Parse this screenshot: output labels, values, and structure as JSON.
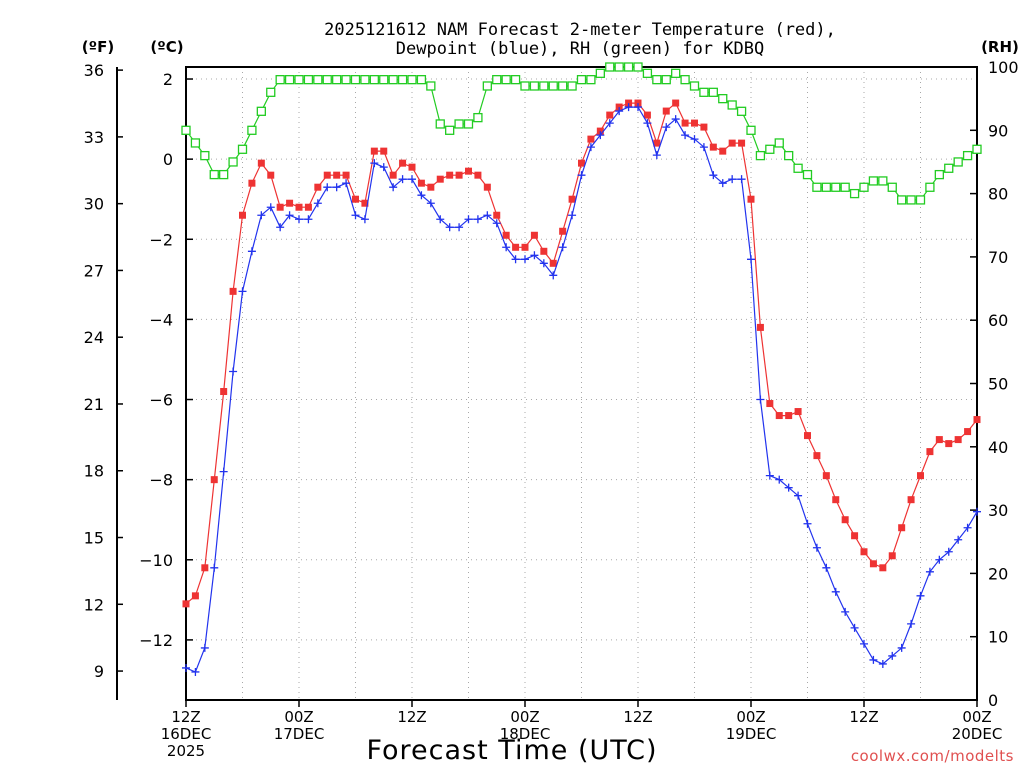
{
  "chart_data": {
    "type": "line",
    "title_line1": "2025121612 NAM Forecast 2-meter Temperature (red),",
    "title_line2": "Dewpoint (blue), RH (green) for KDBQ",
    "xlabel": "Forecast Time (UTC)",
    "watermark": "coolwx.com/modelts",
    "units": {
      "f": "(ºF)",
      "c": "(ºC)",
      "rh": "(RH)"
    },
    "x_range_hours": [
      0,
      84
    ],
    "x_ticks": [
      {
        "hour": 0,
        "line1": "12Z",
        "line2": "16DEC",
        "line3": "2025"
      },
      {
        "hour": 12,
        "line1": "00Z",
        "line2": "17DEC",
        "line3": ""
      },
      {
        "hour": 24,
        "line1": "12Z",
        "line2": "",
        "line3": ""
      },
      {
        "hour": 36,
        "line1": "00Z",
        "line2": "18DEC",
        "line3": ""
      },
      {
        "hour": 48,
        "line1": "12Z",
        "line2": "",
        "line3": ""
      },
      {
        "hour": 60,
        "line1": "00Z",
        "line2": "19DEC",
        "line3": ""
      },
      {
        "hour": 72,
        "line1": "12Z",
        "line2": "",
        "line3": ""
      },
      {
        "hour": 84,
        "line1": "00Z",
        "line2": "20DEC",
        "line3": ""
      }
    ],
    "y_celsius_range": [
      -13.5,
      2.3
    ],
    "y_celsius_ticks": [
      "2",
      "0",
      "−2",
      "−4",
      "−6",
      "−8",
      "−10",
      "−12"
    ],
    "y_fahrenheit_ticks": [
      "36",
      "33",
      "30",
      "27",
      "24",
      "21",
      "18",
      "15",
      "12",
      "9"
    ],
    "y_rh_range": [
      0,
      100
    ],
    "y_rh_ticks": [
      "100",
      "90",
      "80",
      "70",
      "60",
      "50",
      "40",
      "30",
      "20",
      "10",
      "0"
    ],
    "grid": true,
    "series": [
      {
        "name": "Temperature",
        "color": "#ee3333",
        "marker": "filled-square",
        "axis": "celsius",
        "x": [
          0,
          1,
          2,
          3,
          4,
          5,
          6,
          7,
          8,
          9,
          10,
          11,
          12,
          13,
          14,
          15,
          16,
          17,
          18,
          19,
          20,
          21,
          22,
          23,
          24,
          25,
          26,
          27,
          28,
          29,
          30,
          31,
          32,
          33,
          34,
          35,
          36,
          37,
          38,
          39,
          40,
          41,
          42,
          43,
          44,
          45,
          46,
          47,
          48,
          49,
          50,
          51,
          52,
          53,
          54,
          55,
          56,
          57,
          58,
          59,
          60,
          61,
          62,
          63,
          64,
          65,
          66,
          67,
          68,
          69,
          70,
          71,
          72,
          73,
          74,
          75,
          76,
          77,
          78,
          79,
          80,
          81,
          82,
          83,
          84
        ],
        "values": [
          -11.1,
          -10.9,
          -10.2,
          -8.0,
          -5.8,
          -3.3,
          -1.4,
          -0.6,
          -0.1,
          -0.4,
          -1.2,
          -1.1,
          -1.2,
          -1.2,
          -0.7,
          -0.4,
          -0.4,
          -0.4,
          -1.0,
          -1.1,
          0.2,
          0.2,
          -0.4,
          -0.1,
          -0.2,
          -0.6,
          -0.7,
          -0.5,
          -0.4,
          -0.4,
          -0.3,
          -0.4,
          -0.7,
          -1.4,
          -1.9,
          -2.2,
          -2.2,
          -1.9,
          -2.3,
          -2.6,
          -1.8,
          -1.0,
          -0.1,
          0.5,
          0.7,
          1.1,
          1.3,
          1.4,
          1.4,
          1.1,
          0.4,
          1.2,
          1.4,
          0.9,
          0.9,
          0.8,
          0.3,
          0.2,
          0.4,
          0.4,
          -1.0,
          -4.2,
          -6.1,
          -6.4,
          -6.4,
          -6.3,
          -6.9,
          -7.4,
          -7.9,
          -8.5,
          -9.0,
          -9.4,
          -9.8,
          -10.1,
          -10.2,
          -9.9,
          -9.2,
          -8.5,
          -7.9,
          -7.3,
          -7.0,
          -7.1,
          -7.0,
          -6.8,
          -6.5
        ]
      },
      {
        "name": "Dewpoint",
        "color": "#2233ee",
        "marker": "plus",
        "axis": "celsius",
        "x": [
          0,
          1,
          2,
          3,
          4,
          5,
          6,
          7,
          8,
          9,
          10,
          11,
          12,
          13,
          14,
          15,
          16,
          17,
          18,
          19,
          20,
          21,
          22,
          23,
          24,
          25,
          26,
          27,
          28,
          29,
          30,
          31,
          32,
          33,
          34,
          35,
          36,
          37,
          38,
          39,
          40,
          41,
          42,
          43,
          44,
          45,
          46,
          47,
          48,
          49,
          50,
          51,
          52,
          53,
          54,
          55,
          56,
          57,
          58,
          59,
          60,
          61,
          62,
          63,
          64,
          65,
          66,
          67,
          68,
          69,
          70,
          71,
          72,
          73,
          74,
          75,
          76,
          77,
          78,
          79,
          80,
          81,
          82,
          83,
          84
        ],
        "values": [
          -12.7,
          -12.8,
          -12.2,
          -10.2,
          -7.8,
          -5.3,
          -3.3,
          -2.3,
          -1.4,
          -1.2,
          -1.7,
          -1.4,
          -1.5,
          -1.5,
          -1.1,
          -0.7,
          -0.7,
          -0.6,
          -1.4,
          -1.5,
          -0.1,
          -0.2,
          -0.7,
          -0.5,
          -0.5,
          -0.9,
          -1.1,
          -1.5,
          -1.7,
          -1.7,
          -1.5,
          -1.5,
          -1.4,
          -1.6,
          -2.2,
          -2.5,
          -2.5,
          -2.4,
          -2.6,
          -2.9,
          -2.2,
          -1.4,
          -0.4,
          0.3,
          0.6,
          0.9,
          1.2,
          1.3,
          1.3,
          0.9,
          0.1,
          0.8,
          1.0,
          0.6,
          0.5,
          0.3,
          -0.4,
          -0.6,
          -0.5,
          -0.5,
          -2.5,
          -6.0,
          -7.9,
          -8.0,
          -8.2,
          -8.4,
          -9.1,
          -9.7,
          -10.2,
          -10.8,
          -11.3,
          -11.7,
          -12.1,
          -12.5,
          -12.6,
          -12.4,
          -12.2,
          -11.6,
          -10.9,
          -10.3,
          -10.0,
          -9.8,
          -9.5,
          -9.2,
          -8.8
        ]
      },
      {
        "name": "RH",
        "color": "#22cc22",
        "marker": "open-square",
        "axis": "rh",
        "x": [
          0,
          1,
          2,
          3,
          4,
          5,
          6,
          7,
          8,
          9,
          10,
          11,
          12,
          13,
          14,
          15,
          16,
          17,
          18,
          19,
          20,
          21,
          22,
          23,
          24,
          25,
          26,
          27,
          28,
          29,
          30,
          31,
          32,
          33,
          34,
          35,
          36,
          37,
          38,
          39,
          40,
          41,
          42,
          43,
          44,
          45,
          46,
          47,
          48,
          49,
          50,
          51,
          52,
          53,
          54,
          55,
          56,
          57,
          58,
          59,
          60,
          61,
          62,
          63,
          64,
          65,
          66,
          67,
          68,
          69,
          70,
          71,
          72,
          73,
          74,
          75,
          76,
          77,
          78,
          79,
          80,
          81,
          82,
          83,
          84
        ],
        "values": [
          90,
          88,
          86,
          83,
          83,
          85,
          87,
          90,
          93,
          96,
          98,
          98,
          98,
          98,
          98,
          98,
          98,
          98,
          98,
          98,
          98,
          98,
          98,
          98,
          98,
          98,
          97,
          91,
          90,
          91,
          91,
          92,
          97,
          98,
          98,
          98,
          97,
          97,
          97,
          97,
          97,
          97,
          98,
          98,
          99,
          100,
          100,
          100,
          100,
          99,
          98,
          98,
          99,
          98,
          97,
          96,
          96,
          95,
          94,
          93,
          90,
          86,
          87,
          88,
          86,
          84,
          83,
          81,
          81,
          81,
          81,
          80,
          81,
          82,
          82,
          81,
          79,
          79,
          79,
          81,
          83,
          84,
          85,
          86,
          87
        ]
      }
    ]
  }
}
